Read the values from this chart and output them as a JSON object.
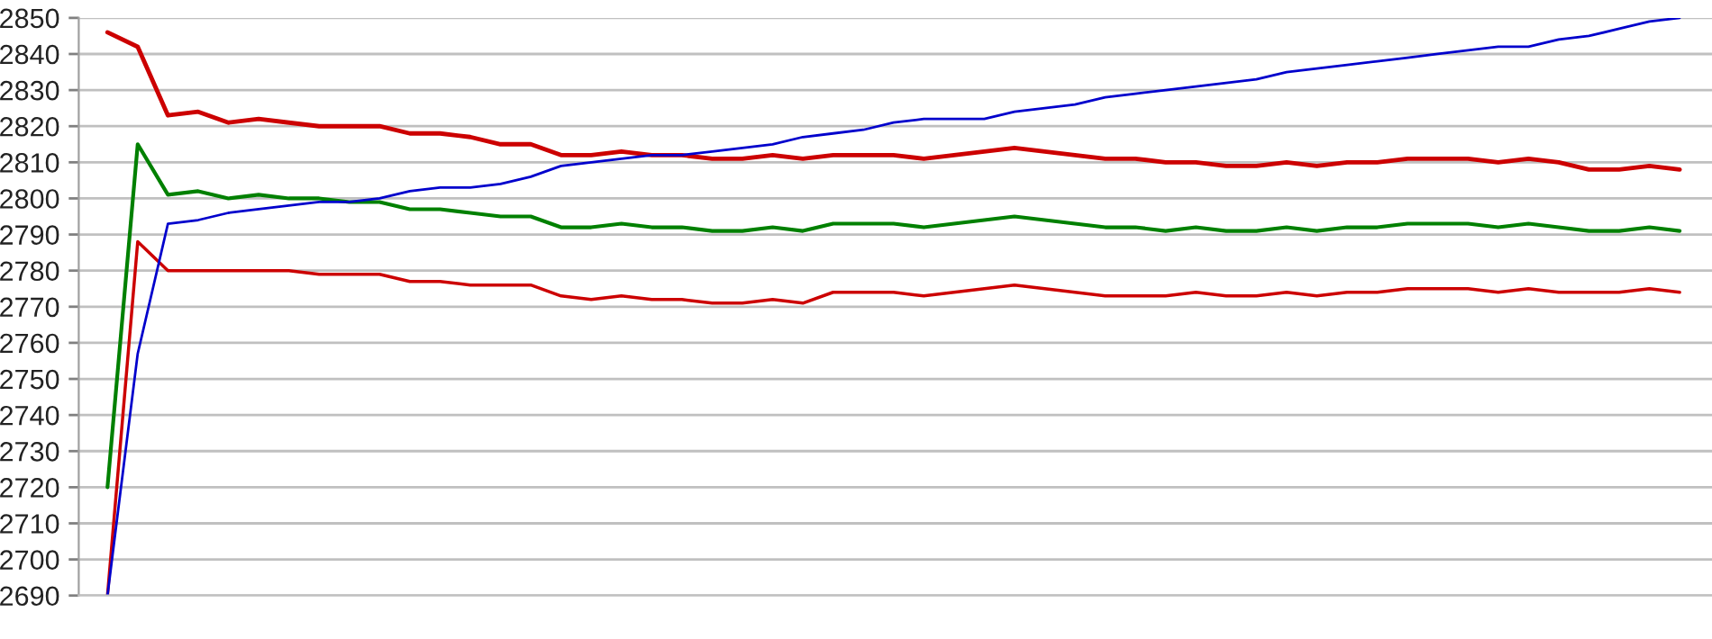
{
  "chart_data": {
    "type": "line",
    "categories": [
      null,
      null,
      null,
      null,
      null,
      null,
      null,
      null,
      null,
      null,
      null,
      null,
      null,
      null,
      null,
      null,
      null,
      null,
      null,
      null,
      null,
      null,
      null,
      null,
      null,
      null,
      null,
      null,
      null,
      null,
      null,
      null,
      null,
      null,
      null,
      null,
      null,
      null,
      null,
      null,
      null,
      null,
      null,
      null,
      null,
      null,
      null,
      null,
      null,
      null,
      null,
      null,
      null
    ],
    "series": [
      {
        "color": "#cc0000",
        "values": [
          2846,
          2842,
          2823,
          2824,
          2821,
          2822,
          2821,
          2820,
          2820,
          2820,
          2818,
          2818,
          2817,
          2815,
          2815,
          2812,
          2812,
          2813,
          2812,
          2812,
          2811,
          2811,
          2812,
          2811,
          2812,
          2812,
          2812,
          2811,
          2812,
          2813,
          2814,
          2813,
          2812,
          2811,
          2811,
          2810,
          2810,
          2809,
          2809,
          2810,
          2809,
          2810,
          2810,
          2811,
          2811,
          2811,
          2810,
          2811,
          2810,
          2808,
          2808,
          2809,
          2808
        ]
      },
      {
        "color": "#008000",
        "values": [
          2720,
          2815,
          2801,
          2802,
          2800,
          2801,
          2800,
          2800,
          2799,
          2799,
          2797,
          2797,
          2796,
          2795,
          2795,
          2792,
          2792,
          2793,
          2792,
          2792,
          2791,
          2791,
          2792,
          2791,
          2793,
          2793,
          2793,
          2792,
          2793,
          2794,
          2795,
          2794,
          2793,
          2792,
          2792,
          2791,
          2792,
          2791,
          2791,
          2792,
          2791,
          2792,
          2792,
          2793,
          2793,
          2793,
          2792,
          2793,
          2792,
          2791,
          2791,
          2792,
          2791
        ]
      },
      {
        "color": "#cc0000",
        "values": [
          2690,
          2788,
          2780,
          2780,
          2780,
          2780,
          2780,
          2779,
          2779,
          2779,
          2777,
          2777,
          2776,
          2776,
          2776,
          2773,
          2772,
          2773,
          2772,
          2772,
          2771,
          2771,
          2772,
          2771,
          2774,
          2774,
          2774,
          2773,
          2774,
          2775,
          2776,
          2775,
          2774,
          2773,
          2773,
          2773,
          2774,
          2773,
          2773,
          2774,
          2773,
          2774,
          2774,
          2775,
          2775,
          2775,
          2774,
          2775,
          2774,
          2774,
          2774,
          2775,
          2774
        ]
      },
      {
        "color": "#0000cc",
        "values": [
          2690,
          2757,
          2793,
          2794,
          2796,
          2797,
          2798,
          2799,
          2799,
          2800,
          2802,
          2803,
          2803,
          2804,
          2806,
          2809,
          2810,
          2811,
          2812,
          2812,
          2813,
          2814,
          2815,
          2817,
          2818,
          2819,
          2821,
          2822,
          2822,
          2822,
          2824,
          2825,
          2826,
          2828,
          2829,
          2830,
          2831,
          2832,
          2833,
          2835,
          2836,
          2837,
          2838,
          2839,
          2840,
          2841,
          2842,
          2842,
          2844,
          2845,
          2847,
          2849,
          2850
        ]
      }
    ],
    "ylim": [
      2690,
      2850
    ],
    "yticks": [
      2690,
      2700,
      2710,
      2720,
      2730,
      2740,
      2750,
      2760,
      2770,
      2780,
      2790,
      2800,
      2810,
      2820,
      2830,
      2840,
      2850
    ],
    "grid": "y",
    "tick_labels": "y",
    "marker": "none",
    "line_style": "solid",
    "legend": false
  }
}
